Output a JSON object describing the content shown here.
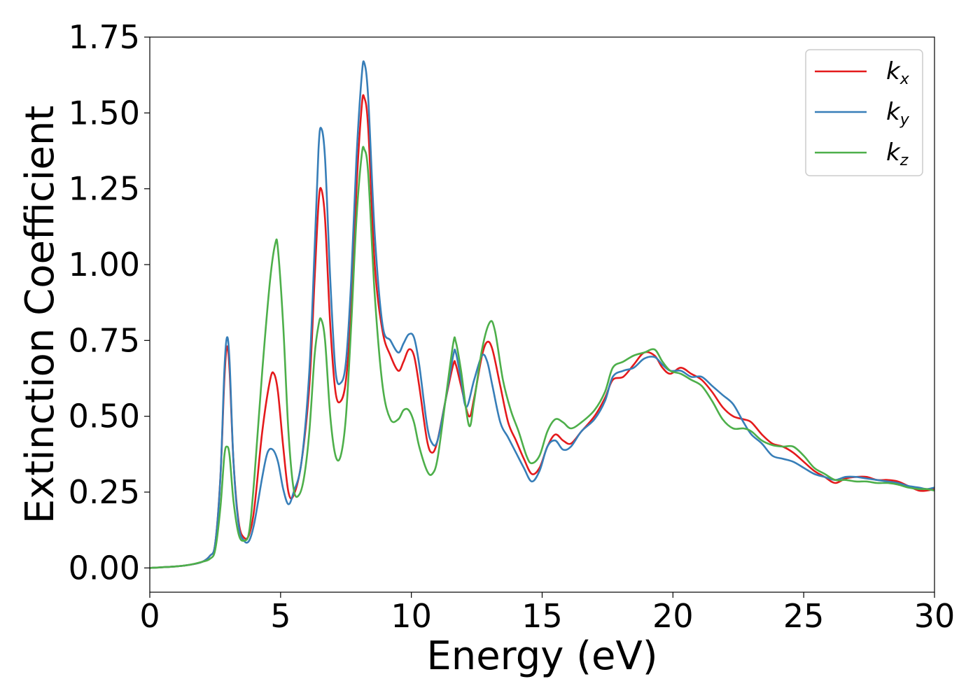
{
  "chart_data": {
    "type": "line",
    "xlabel": "Energy (eV)",
    "ylabel": "Extinction Coefficient",
    "xlim": [
      0,
      30
    ],
    "ylim": [
      -0.08,
      1.75
    ],
    "xticks": [
      0,
      5,
      10,
      15,
      20,
      25,
      30
    ],
    "xtick_labels": [
      "0",
      "5",
      "10",
      "15",
      "20",
      "25",
      "30"
    ],
    "yticks": [
      0.0,
      0.25,
      0.5,
      0.75,
      1.0,
      1.25,
      1.5,
      1.75
    ],
    "ytick_labels": [
      "0.00",
      "0.25",
      "0.50",
      "0.75",
      "1.00",
      "1.25",
      "1.50",
      "1.75"
    ],
    "grid": false,
    "legend_position": "top-right",
    "series": [
      {
        "name": "k",
        "subscript": "x",
        "color": "#e41a1c",
        "points": [
          [
            0,
            0.0
          ],
          [
            1,
            0.005
          ],
          [
            1.5,
            0.01
          ],
          [
            2,
            0.02
          ],
          [
            2.3,
            0.04
          ],
          [
            2.5,
            0.08
          ],
          [
            2.7,
            0.3
          ],
          [
            2.85,
            0.62
          ],
          [
            2.95,
            0.73
          ],
          [
            3.05,
            0.65
          ],
          [
            3.2,
            0.35
          ],
          [
            3.4,
            0.15
          ],
          [
            3.6,
            0.1
          ],
          [
            3.8,
            0.11
          ],
          [
            4.0,
            0.2
          ],
          [
            4.3,
            0.45
          ],
          [
            4.6,
            0.62
          ],
          [
            4.75,
            0.64
          ],
          [
            4.9,
            0.58
          ],
          [
            5.1,
            0.4
          ],
          [
            5.3,
            0.25
          ],
          [
            5.5,
            0.24
          ],
          [
            5.8,
            0.35
          ],
          [
            6.1,
            0.6
          ],
          [
            6.3,
            0.95
          ],
          [
            6.45,
            1.2
          ],
          [
            6.55,
            1.25
          ],
          [
            6.7,
            1.15
          ],
          [
            6.9,
            0.8
          ],
          [
            7.1,
            0.58
          ],
          [
            7.3,
            0.55
          ],
          [
            7.5,
            0.62
          ],
          [
            7.7,
            0.85
          ],
          [
            7.9,
            1.25
          ],
          [
            8.1,
            1.52
          ],
          [
            8.2,
            1.55
          ],
          [
            8.35,
            1.45
          ],
          [
            8.6,
            1.0
          ],
          [
            8.9,
            0.78
          ],
          [
            9.2,
            0.7
          ],
          [
            9.5,
            0.65
          ],
          [
            9.7,
            0.68
          ],
          [
            9.9,
            0.72
          ],
          [
            10.1,
            0.7
          ],
          [
            10.3,
            0.6
          ],
          [
            10.6,
            0.42
          ],
          [
            10.8,
            0.38
          ],
          [
            11.0,
            0.42
          ],
          [
            11.3,
            0.55
          ],
          [
            11.6,
            0.67
          ],
          [
            11.7,
            0.67
          ],
          [
            11.9,
            0.6
          ],
          [
            12.2,
            0.5
          ],
          [
            12.4,
            0.56
          ],
          [
            12.7,
            0.7
          ],
          [
            12.9,
            0.745
          ],
          [
            13.1,
            0.72
          ],
          [
            13.4,
            0.6
          ],
          [
            13.7,
            0.48
          ],
          [
            14.0,
            0.42
          ],
          [
            14.3,
            0.36
          ],
          [
            14.6,
            0.31
          ],
          [
            14.9,
            0.33
          ],
          [
            15.2,
            0.4
          ],
          [
            15.5,
            0.44
          ],
          [
            15.8,
            0.42
          ],
          [
            16.1,
            0.41
          ],
          [
            16.5,
            0.45
          ],
          [
            17.0,
            0.5
          ],
          [
            17.4,
            0.56
          ],
          [
            17.7,
            0.62
          ],
          [
            18.1,
            0.63
          ],
          [
            18.5,
            0.67
          ],
          [
            18.9,
            0.71
          ],
          [
            19.3,
            0.7
          ],
          [
            19.6,
            0.66
          ],
          [
            19.9,
            0.64
          ],
          [
            20.3,
            0.66
          ],
          [
            20.7,
            0.64
          ],
          [
            21.1,
            0.62
          ],
          [
            21.5,
            0.58
          ],
          [
            21.9,
            0.53
          ],
          [
            22.3,
            0.5
          ],
          [
            22.7,
            0.49
          ],
          [
            23.0,
            0.48
          ],
          [
            23.4,
            0.44
          ],
          [
            23.8,
            0.41
          ],
          [
            24.2,
            0.4
          ],
          [
            24.6,
            0.38
          ],
          [
            25.0,
            0.35
          ],
          [
            25.4,
            0.32
          ],
          [
            25.8,
            0.3
          ],
          [
            26.2,
            0.28
          ],
          [
            26.6,
            0.295
          ],
          [
            27.0,
            0.3
          ],
          [
            27.4,
            0.3
          ],
          [
            27.8,
            0.29
          ],
          [
            28.2,
            0.29
          ],
          [
            28.6,
            0.285
          ],
          [
            29.0,
            0.27
          ],
          [
            29.4,
            0.255
          ],
          [
            29.7,
            0.255
          ],
          [
            30,
            0.26
          ]
        ]
      },
      {
        "name": "k",
        "subscript": "y",
        "color": "#377eb8",
        "points": [
          [
            0,
            0.0
          ],
          [
            1,
            0.005
          ],
          [
            1.5,
            0.01
          ],
          [
            2,
            0.02
          ],
          [
            2.3,
            0.04
          ],
          [
            2.5,
            0.08
          ],
          [
            2.7,
            0.3
          ],
          [
            2.85,
            0.65
          ],
          [
            2.95,
            0.76
          ],
          [
            3.05,
            0.68
          ],
          [
            3.2,
            0.35
          ],
          [
            3.4,
            0.14
          ],
          [
            3.6,
            0.09
          ],
          [
            3.8,
            0.09
          ],
          [
            4.0,
            0.15
          ],
          [
            4.3,
            0.3
          ],
          [
            4.5,
            0.38
          ],
          [
            4.7,
            0.39
          ],
          [
            4.9,
            0.35
          ],
          [
            5.1,
            0.26
          ],
          [
            5.3,
            0.21
          ],
          [
            5.5,
            0.25
          ],
          [
            5.8,
            0.35
          ],
          [
            6.1,
            0.65
          ],
          [
            6.3,
            1.05
          ],
          [
            6.45,
            1.38
          ],
          [
            6.55,
            1.45
          ],
          [
            6.7,
            1.35
          ],
          [
            6.9,
            0.95
          ],
          [
            7.1,
            0.65
          ],
          [
            7.3,
            0.61
          ],
          [
            7.5,
            0.68
          ],
          [
            7.7,
            0.95
          ],
          [
            7.9,
            1.35
          ],
          [
            8.1,
            1.62
          ],
          [
            8.2,
            1.665
          ],
          [
            8.35,
            1.55
          ],
          [
            8.6,
            1.1
          ],
          [
            8.9,
            0.8
          ],
          [
            9.2,
            0.75
          ],
          [
            9.5,
            0.71
          ],
          [
            9.7,
            0.74
          ],
          [
            9.9,
            0.77
          ],
          [
            10.1,
            0.76
          ],
          [
            10.3,
            0.67
          ],
          [
            10.6,
            0.47
          ],
          [
            10.8,
            0.41
          ],
          [
            11.0,
            0.42
          ],
          [
            11.3,
            0.55
          ],
          [
            11.6,
            0.7
          ],
          [
            11.7,
            0.71
          ],
          [
            11.9,
            0.62
          ],
          [
            12.1,
            0.53
          ],
          [
            12.4,
            0.62
          ],
          [
            12.7,
            0.7
          ],
          [
            12.9,
            0.68
          ],
          [
            13.1,
            0.6
          ],
          [
            13.4,
            0.48
          ],
          [
            13.7,
            0.43
          ],
          [
            14.0,
            0.38
          ],
          [
            14.3,
            0.33
          ],
          [
            14.6,
            0.285
          ],
          [
            14.9,
            0.32
          ],
          [
            15.2,
            0.4
          ],
          [
            15.5,
            0.42
          ],
          [
            15.8,
            0.39
          ],
          [
            16.1,
            0.4
          ],
          [
            16.5,
            0.45
          ],
          [
            17.0,
            0.49
          ],
          [
            17.4,
            0.55
          ],
          [
            17.7,
            0.63
          ],
          [
            18.1,
            0.65
          ],
          [
            18.5,
            0.66
          ],
          [
            18.9,
            0.69
          ],
          [
            19.3,
            0.695
          ],
          [
            19.6,
            0.67
          ],
          [
            19.9,
            0.65
          ],
          [
            20.3,
            0.65
          ],
          [
            20.7,
            0.63
          ],
          [
            21.1,
            0.63
          ],
          [
            21.5,
            0.6
          ],
          [
            21.9,
            0.57
          ],
          [
            22.3,
            0.54
          ],
          [
            22.7,
            0.48
          ],
          [
            23.0,
            0.44
          ],
          [
            23.4,
            0.41
          ],
          [
            23.8,
            0.37
          ],
          [
            24.2,
            0.36
          ],
          [
            24.6,
            0.35
          ],
          [
            25.0,
            0.33
          ],
          [
            25.4,
            0.31
          ],
          [
            25.8,
            0.3
          ],
          [
            26.2,
            0.29
          ],
          [
            26.6,
            0.3
          ],
          [
            27.0,
            0.3
          ],
          [
            27.4,
            0.295
          ],
          [
            27.8,
            0.29
          ],
          [
            28.2,
            0.285
          ],
          [
            28.6,
            0.28
          ],
          [
            29.0,
            0.27
          ],
          [
            29.4,
            0.265
          ],
          [
            29.7,
            0.26
          ],
          [
            30,
            0.265
          ]
        ]
      },
      {
        "name": "k",
        "subscript": "z",
        "color": "#4daf4a",
        "points": [
          [
            0,
            0.0
          ],
          [
            1,
            0.005
          ],
          [
            1.5,
            0.01
          ],
          [
            2,
            0.02
          ],
          [
            2.3,
            0.03
          ],
          [
            2.5,
            0.06
          ],
          [
            2.7,
            0.2
          ],
          [
            2.85,
            0.37
          ],
          [
            2.95,
            0.4
          ],
          [
            3.05,
            0.37
          ],
          [
            3.2,
            0.22
          ],
          [
            3.4,
            0.11
          ],
          [
            3.6,
            0.09
          ],
          [
            3.8,
            0.12
          ],
          [
            4.0,
            0.3
          ],
          [
            4.3,
            0.65
          ],
          [
            4.6,
            0.95
          ],
          [
            4.8,
            1.07
          ],
          [
            4.9,
            1.05
          ],
          [
            5.1,
            0.8
          ],
          [
            5.3,
            0.45
          ],
          [
            5.5,
            0.26
          ],
          [
            5.7,
            0.24
          ],
          [
            5.9,
            0.3
          ],
          [
            6.1,
            0.45
          ],
          [
            6.3,
            0.7
          ],
          [
            6.45,
            0.8
          ],
          [
            6.55,
            0.82
          ],
          [
            6.7,
            0.75
          ],
          [
            6.9,
            0.5
          ],
          [
            7.1,
            0.37
          ],
          [
            7.3,
            0.37
          ],
          [
            7.5,
            0.5
          ],
          [
            7.7,
            0.8
          ],
          [
            7.9,
            1.15
          ],
          [
            8.1,
            1.36
          ],
          [
            8.2,
            1.38
          ],
          [
            8.35,
            1.3
          ],
          [
            8.6,
            0.9
          ],
          [
            8.9,
            0.6
          ],
          [
            9.2,
            0.49
          ],
          [
            9.5,
            0.49
          ],
          [
            9.7,
            0.52
          ],
          [
            9.9,
            0.52
          ],
          [
            10.1,
            0.48
          ],
          [
            10.3,
            0.4
          ],
          [
            10.6,
            0.32
          ],
          [
            10.8,
            0.31
          ],
          [
            11.0,
            0.36
          ],
          [
            11.3,
            0.55
          ],
          [
            11.6,
            0.74
          ],
          [
            11.7,
            0.745
          ],
          [
            11.9,
            0.65
          ],
          [
            12.2,
            0.47
          ],
          [
            12.4,
            0.55
          ],
          [
            12.7,
            0.72
          ],
          [
            13.0,
            0.81
          ],
          [
            13.2,
            0.78
          ],
          [
            13.5,
            0.62
          ],
          [
            13.8,
            0.52
          ],
          [
            14.1,
            0.45
          ],
          [
            14.4,
            0.37
          ],
          [
            14.6,
            0.345
          ],
          [
            14.9,
            0.37
          ],
          [
            15.2,
            0.45
          ],
          [
            15.5,
            0.49
          ],
          [
            15.8,
            0.48
          ],
          [
            16.1,
            0.46
          ],
          [
            16.5,
            0.48
          ],
          [
            17.0,
            0.52
          ],
          [
            17.4,
            0.58
          ],
          [
            17.7,
            0.66
          ],
          [
            18.1,
            0.68
          ],
          [
            18.5,
            0.7
          ],
          [
            18.9,
            0.71
          ],
          [
            19.3,
            0.72
          ],
          [
            19.6,
            0.68
          ],
          [
            19.9,
            0.65
          ],
          [
            20.3,
            0.64
          ],
          [
            20.7,
            0.62
          ],
          [
            21.1,
            0.6
          ],
          [
            21.5,
            0.55
          ],
          [
            21.9,
            0.49
          ],
          [
            22.3,
            0.46
          ],
          [
            22.7,
            0.46
          ],
          [
            23.0,
            0.45
          ],
          [
            23.4,
            0.42
          ],
          [
            23.8,
            0.405
          ],
          [
            24.2,
            0.4
          ],
          [
            24.6,
            0.4
          ],
          [
            25.0,
            0.37
          ],
          [
            25.4,
            0.33
          ],
          [
            25.8,
            0.31
          ],
          [
            26.2,
            0.29
          ],
          [
            26.6,
            0.29
          ],
          [
            27.0,
            0.285
          ],
          [
            27.4,
            0.285
          ],
          [
            27.8,
            0.28
          ],
          [
            28.2,
            0.28
          ],
          [
            28.6,
            0.275
          ],
          [
            29.0,
            0.265
          ],
          [
            29.4,
            0.26
          ],
          [
            29.7,
            0.26
          ],
          [
            30,
            0.255
          ]
        ]
      }
    ]
  }
}
